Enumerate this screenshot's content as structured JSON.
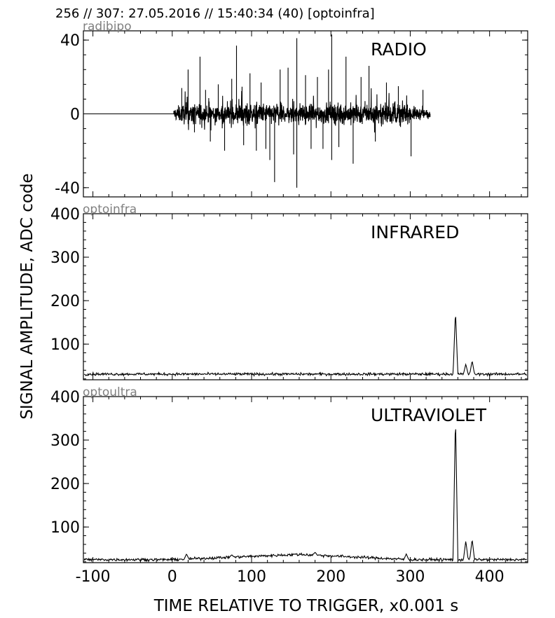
{
  "header": "256 // 307:   27.05.2016 // 15:40:34 (40)  [optoinfra]",
  "ylabel": "SIGNAL AMPLITUDE,  ADC code",
  "xlabel": "TIME RELATIVE TO TRIGGER,   x0.001 s",
  "chart_data": [
    {
      "type": "line",
      "source_label": "radibipo",
      "annotation": "RADIO",
      "xlim": [
        -112,
        448
      ],
      "ylim": [
        -45,
        45
      ],
      "x_ticks": [
        -100,
        0,
        100,
        200,
        300,
        400
      ],
      "y_ticks": [
        -40,
        0,
        40
      ],
      "y_tick_labels": [
        "-40",
        "0",
        "40"
      ],
      "grid": false,
      "series": [
        {
          "color": "#000000",
          "signal": {
            "kind": "burst",
            "baseline": 0,
            "start": 2,
            "end": 325,
            "noise": 5,
            "spikes": [
              [
                12,
                14
              ],
              [
                20,
                24
              ],
              [
                28,
                -10
              ],
              [
                35,
                31
              ],
              [
                42,
                13
              ],
              [
                48,
                -15
              ],
              [
                58,
                16
              ],
              [
                66,
                -20
              ],
              [
                75,
                19
              ],
              [
                81,
                37
              ],
              [
                90,
                -17
              ],
              [
                98,
                22
              ],
              [
                106,
                -20
              ],
              [
                112,
                17
              ],
              [
                118,
                -19
              ],
              [
                123,
                -25
              ],
              [
                129,
                -37
              ],
              [
                136,
                24
              ],
              [
                146,
                25
              ],
              [
                153,
                -22
              ],
              [
                157,
                41
              ],
              [
                157,
                -40
              ],
              [
                168,
                21
              ],
              [
                175,
                -19
              ],
              [
                183,
                20
              ],
              [
                190,
                -19
              ],
              [
                197,
                24
              ],
              [
                201,
                43
              ],
              [
                201,
                -25
              ],
              [
                210,
                -18
              ],
              [
                219,
                31
              ],
              [
                228,
                -27
              ],
              [
                238,
                20
              ],
              [
                248,
                26
              ],
              [
                256,
                -15
              ],
              [
                270,
                17
              ],
              [
                285,
                15
              ],
              [
                301,
                -23
              ],
              [
                316,
                13
              ]
            ]
          }
        }
      ]
    },
    {
      "type": "line",
      "source_label": "optoinfra",
      "annotation": "INFRARED",
      "xlim": [
        -112,
        448
      ],
      "ylim": [
        18,
        400
      ],
      "x_ticks": [
        -100,
        0,
        100,
        200,
        300,
        400
      ],
      "y_ticks": [
        100,
        200,
        300,
        400
      ],
      "y_tick_labels": [
        "100",
        "200",
        "300",
        "400"
      ],
      "grid": false,
      "series": [
        {
          "color": "#000000",
          "signal": {
            "kind": "baseline",
            "baseline": 31,
            "noise": 1.5,
            "spike_width": 3,
            "spikes": [
              [
                357,
                177
              ],
              [
                370,
                54
              ],
              [
                378,
                62
              ]
            ]
          }
        }
      ]
    },
    {
      "type": "line",
      "source_label": "optoultra",
      "annotation": "ULTRAVIOLET",
      "xlim": [
        -112,
        448
      ],
      "ylim": [
        18,
        400
      ],
      "x_ticks": [
        -100,
        0,
        100,
        200,
        300,
        400
      ],
      "y_ticks": [
        100,
        200,
        300,
        400
      ],
      "y_tick_labels": [
        "100",
        "200",
        "300",
        "400"
      ],
      "x_tick_labels": [
        "-100",
        "0",
        "100",
        "200",
        "300",
        "400"
      ],
      "grid": false,
      "series": [
        {
          "color": "#000000",
          "signal": {
            "kind": "baseline_hump",
            "baseline": 25,
            "noise": 1.6,
            "spike_width": 3,
            "hump_start": 0,
            "hump_peak": 160,
            "hump_end": 300,
            "hump_height": 12,
            "spikes": [
              [
                18,
                38
              ],
              [
                75,
                36
              ],
              [
                180,
                42
              ],
              [
                295,
                38
              ],
              [
                357,
                358
              ],
              [
                370,
                68
              ],
              [
                378,
                72
              ]
            ]
          }
        }
      ]
    }
  ]
}
